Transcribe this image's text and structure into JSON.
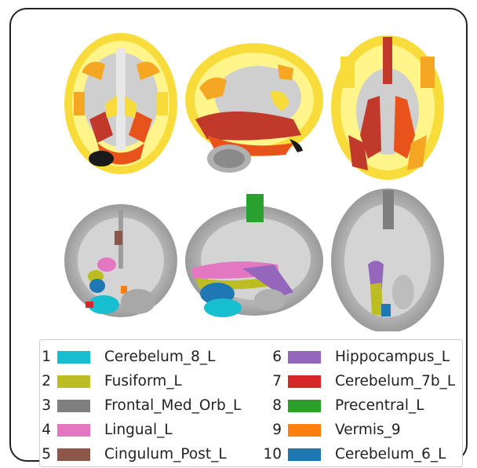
{
  "legend": {
    "items": [
      {
        "num": "1",
        "label": "Cerebelum_8_L",
        "color": "#17becf"
      },
      {
        "num": "2",
        "label": "Fusiform_L",
        "color": "#bcbd22"
      },
      {
        "num": "3",
        "label": "Frontal_Med_Orb_L",
        "color": "#7f7f7f"
      },
      {
        "num": "4",
        "label": "Lingual_L",
        "color": "#e377c2"
      },
      {
        "num": "5",
        "label": "Cingulum_Post_L",
        "color": "#8c564b"
      },
      {
        "num": "6",
        "label": "Hippocampus_L",
        "color": "#9467bd"
      },
      {
        "num": "7",
        "label": "Cerebelum_7b_L",
        "color": "#d62728"
      },
      {
        "num": "8",
        "label": "Precentral_L",
        "color": "#2ca02c"
      },
      {
        "num": "9",
        "label": "Vermis_9",
        "color": "#ff7f0e"
      },
      {
        "num": "10",
        "label": "Cerebelum_6_L",
        "color": "#1f77b4"
      }
    ]
  },
  "panels": {
    "top_row": {
      "views": [
        "axial-heatmap",
        "sagittal-heatmap",
        "axial-inferior-heatmap"
      ],
      "colormap": [
        "#1a1a1a",
        "#c0392b",
        "#e8531b",
        "#f5a623",
        "#f7dc3b",
        "#fff58a"
      ]
    },
    "bottom_row": {
      "views": [
        "coronal-regions",
        "sagittal-regions",
        "axial-regions"
      ]
    }
  }
}
